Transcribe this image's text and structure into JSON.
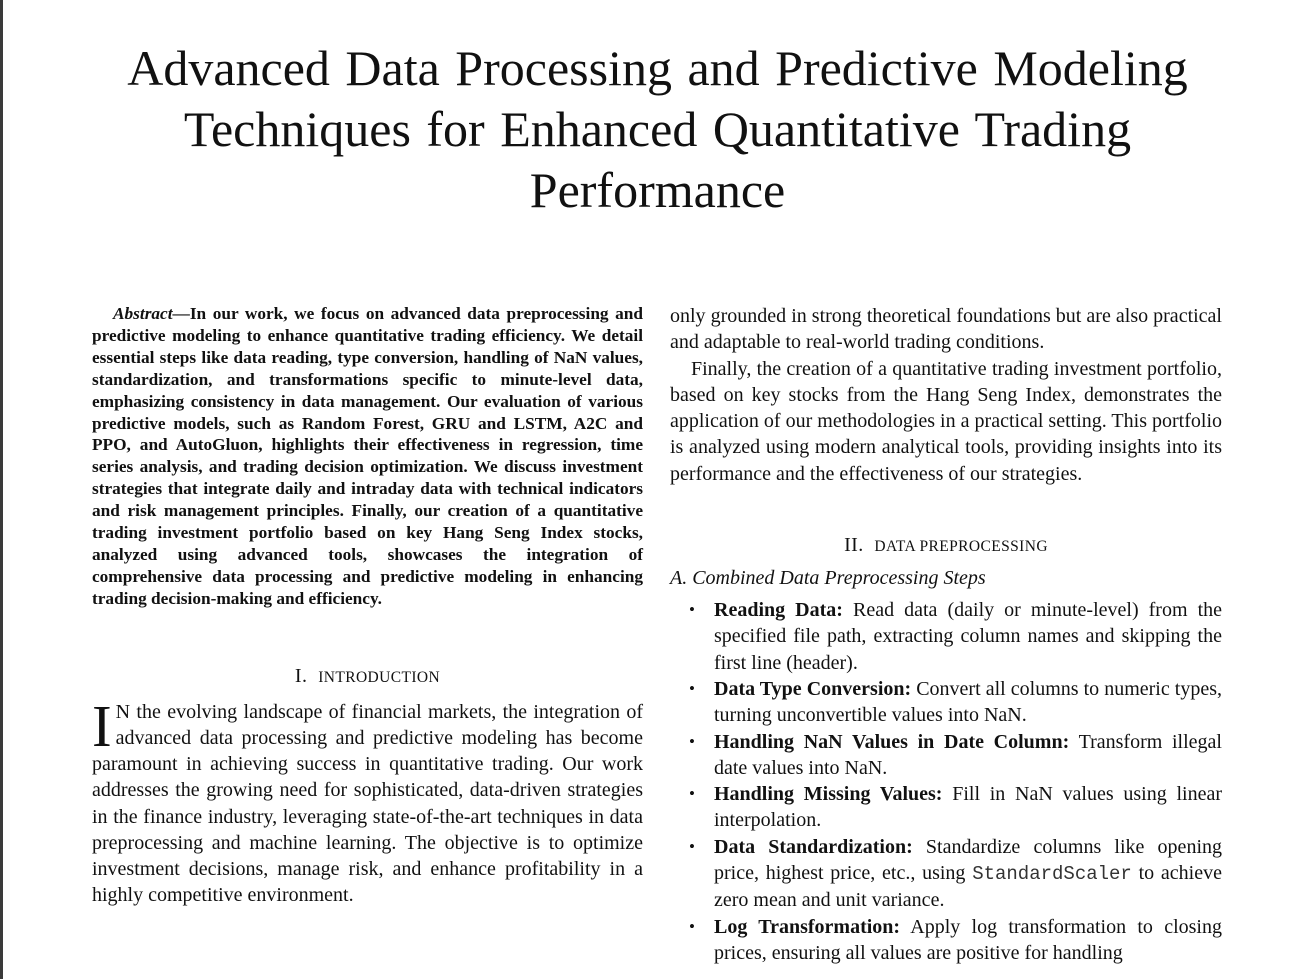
{
  "paper": {
    "title": "Advanced Data Processing and Predictive Modeling Techniques for Enhanced Quantitative Trading Performance",
    "abstract": {
      "label": "Abstract",
      "dash": "—",
      "text": "In our work, we focus on advanced data preprocessing and predictive modeling to enhance quantitative trading efficiency. We detail essential steps like data reading, type conversion, handling of NaN values, standardization, and transformations specific to minute-level data, emphasizing consistency in data management. Our evaluation of various predictive models, such as Random Forest, GRU and LSTM, A2C and PPO, and AutoGluon, highlights their effectiveness in regression, time series analysis, and trading decision optimization. We discuss investment strategies that integrate daily and intraday data with technical indicators and risk management principles. Finally, our creation of a quantitative trading investment portfolio based on key Hang Seng Index stocks, analyzed using advanced tools, showcases the integration of comprehensive data processing and predictive modeling in enhancing trading decision-making and efficiency."
    },
    "introduction": {
      "numeral": "I.",
      "heading": "Introduction",
      "dropcap": "I",
      "paragraph": "N the evolving landscape of financial markets, the integration of advanced data processing and predictive modeling has become paramount in achieving success in quantitative trading. Our work addresses the growing need for sophisticated, data-driven strategies in the finance industry, leveraging state-of-the-art techniques in data preprocessing and machine learning. The objective is to optimize investment decisions, manage risk, and enhance profitability in a highly competitive environment."
    },
    "right_column": {
      "continuation": "only grounded in strong theoretical foundations but are also practical and adaptable to real-world trading conditions.",
      "paragraph2": "Finally, the creation of a quantitative trading investment portfolio, based on key stocks from the Hang Seng Index, demonstrates the application of our methodologies in a practical setting. This portfolio is analyzed using modern analytical tools, providing insights into its performance and the effectiveness of our strategies."
    },
    "data_preprocessing": {
      "numeral": "II.",
      "heading": "Data Preprocessing",
      "subsection": "A.  Combined Data Preprocessing Steps",
      "bullet": "•",
      "steps": [
        {
          "term": "Reading Data:",
          "text": "Read data (daily or minute-level) from the specified file path, extracting column names and skipping the first line (header)."
        },
        {
          "term": "Data Type Conversion:",
          "text": "Convert all columns to numeric types, turning unconvertible values into NaN."
        },
        {
          "term": "Handling NaN Values in Date Column:",
          "text": "Transform illegal date values into NaN."
        },
        {
          "term": "Handling Missing Values:",
          "text": "Fill in NaN values using linear interpolation."
        },
        {
          "term": "Data Standardization:",
          "text_before": "Standardize columns like opening price, highest price, etc., using",
          "code": "StandardScaler",
          "text_after": "to achieve zero mean and unit variance."
        },
        {
          "term": "Log Transformation:",
          "text": "Apply log transformation to closing prices, ensuring all values are positive for handling"
        }
      ]
    }
  }
}
